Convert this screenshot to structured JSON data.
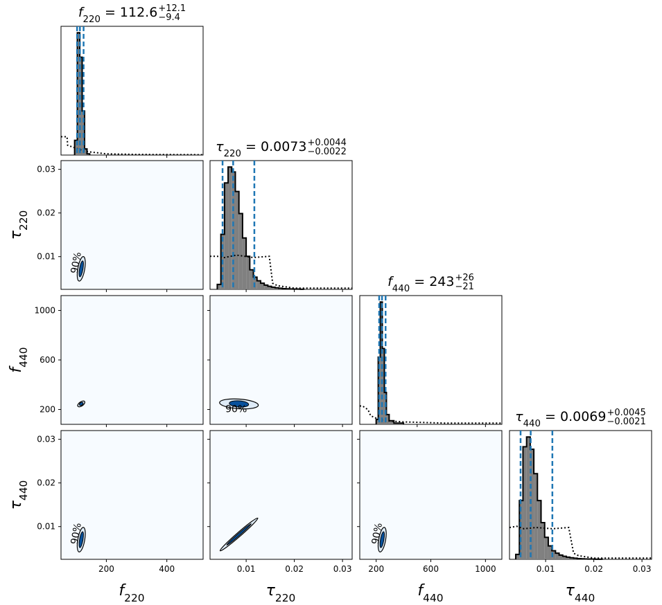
{
  "chart_data": {
    "type": "corner",
    "parameters": [
      {
        "symbol": "f",
        "sub": "220",
        "range": [
          50,
          520
        ],
        "ticks": [
          "200",
          "400"
        ],
        "tick_vals": [
          200,
          400
        ],
        "title": {
          "median": "112.6",
          "plus": "+12.1",
          "minus": "−9.4"
        },
        "quantiles": [
          103.2,
          112.6,
          124.7
        ]
      },
      {
        "symbol": "τ",
        "sub": "220",
        "range": [
          0.0025,
          0.032
        ],
        "ticks": [
          "0.01",
          "0.02",
          "0.03"
        ],
        "tick_vals": [
          0.01,
          0.02,
          0.03
        ],
        "title": {
          "median": "0.0073",
          "plus": "+0.0044",
          "minus": "−0.0022"
        },
        "quantiles": [
          0.0051,
          0.0073,
          0.0117
        ]
      },
      {
        "symbol": "f",
        "sub": "440",
        "range": [
          80,
          1120
        ],
        "ticks": [
          "200",
          "600",
          "1000"
        ],
        "tick_vals": [
          200,
          600,
          1000
        ],
        "diag_ticks": [
          "500",
          "1000"
        ],
        "diag_tick_vals": [
          500,
          1000
        ],
        "title": {
          "median": "243",
          "plus": "+26",
          "minus": "−21"
        },
        "quantiles": [
          222,
          243,
          269
        ]
      },
      {
        "symbol": "τ",
        "sub": "440",
        "range": [
          0.0025,
          0.032
        ],
        "ticks": [
          "0.01",
          "0.02",
          "0.03"
        ],
        "tick_vals": [
          0.01,
          0.02,
          0.03
        ],
        "title": {
          "median": "0.0069",
          "plus": "+0.0045",
          "minus": "−0.0021"
        },
        "quantiles": [
          0.0048,
          0.0069,
          0.0114
        ]
      }
    ],
    "contour_label": "90%",
    "histograms": {
      "p0": {
        "edges": [
          95,
          104,
          112,
          120,
          128,
          136,
          145
        ],
        "counts": [
          0.12,
          1.0,
          0.8,
          0.36,
          0.05,
          0.01
        ],
        "prior_x": [
          50,
          70,
          72,
          130,
          200,
          300,
          520
        ],
        "prior_y": [
          0.15,
          0.15,
          0.08,
          0.03,
          0.01,
          0.005,
          0.003
        ]
      },
      "p1": {
        "x0": 0.004,
        "bw": 0.00075,
        "counts": [
          0.04,
          0.45,
          0.87,
          1.0,
          0.96,
          0.8,
          0.62,
          0.42,
          0.27,
          0.16,
          0.1,
          0.07,
          0.05,
          0.035,
          0.025,
          0.018,
          0.013,
          0.009,
          0.006,
          0.004,
          0.003,
          0.002,
          0.002,
          0.001
        ],
        "prior_x": [
          0.0025,
          0.004,
          0.0055,
          0.008,
          0.0115,
          0.0148,
          0.0155,
          0.0165,
          0.02,
          0.032
        ],
        "prior_y": [
          0.27,
          0.27,
          0.26,
          0.28,
          0.26,
          0.27,
          0.05,
          0.03,
          0.01,
          0.01
        ]
      },
      "p2": {
        "edges": [
          200,
          215,
          230,
          245,
          260,
          275,
          295,
          330,
          400
        ],
        "counts": [
          0.04,
          0.55,
          1.0,
          0.62,
          0.26,
          0.08,
          0.03,
          0.01
        ],
        "prior_x": [
          80,
          100,
          140,
          160,
          200,
          260,
          400,
          700,
          1120
        ],
        "prior_y": [
          0.15,
          0.15,
          0.12,
          0.07,
          0.05,
          0.03,
          0.02,
          0.01,
          0.01
        ]
      },
      "p3": {
        "x0": 0.0038,
        "bw": 0.00075,
        "counts": [
          0.04,
          0.48,
          0.92,
          1.0,
          0.9,
          0.7,
          0.48,
          0.3,
          0.18,
          0.11,
          0.07,
          0.05,
          0.035,
          0.025,
          0.018,
          0.013,
          0.009,
          0.006,
          0.004,
          0.003,
          0.002,
          0.002,
          0.001,
          0.001
        ],
        "prior_x": [
          0.0025,
          0.004,
          0.0055,
          0.008,
          0.0115,
          0.0148,
          0.0158,
          0.0168,
          0.02,
          0.032
        ],
        "prior_y": [
          0.26,
          0.27,
          0.25,
          0.26,
          0.25,
          0.26,
          0.05,
          0.03,
          0.01,
          0.01
        ]
      }
    }
  }
}
